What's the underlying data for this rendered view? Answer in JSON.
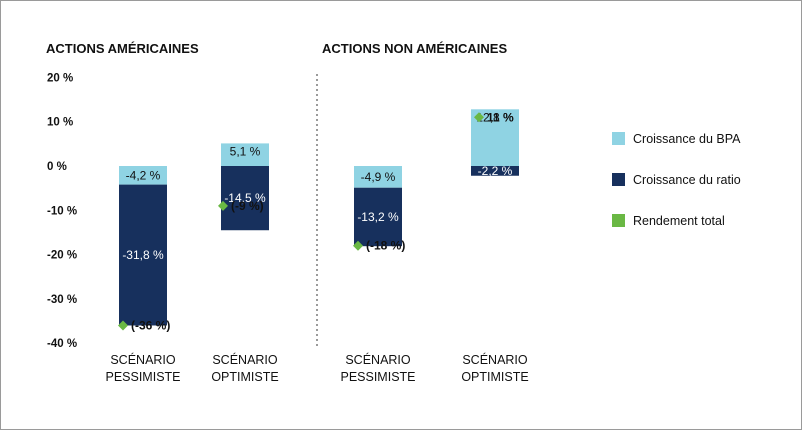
{
  "colors": {
    "eps_growth": "#8fd3e3",
    "ratio_growth": "#17305d",
    "total_return": "#6ab844",
    "divider": "#9a9a9a"
  },
  "chart_data": {
    "type": "bar",
    "stacked": true,
    "ylim": [
      -40,
      20
    ],
    "yticks": [
      "20 %",
      "10 %",
      "0 %",
      "-10 %",
      "-20 %",
      "-30 %",
      "-40 %"
    ],
    "ytick_values": [
      20,
      10,
      0,
      -10,
      -20,
      -30,
      -40
    ],
    "legend": {
      "placement": "right",
      "items": [
        {
          "key": "eps_growth",
          "label": "Croissance du BPA",
          "marker": "square"
        },
        {
          "key": "ratio_growth",
          "label": "Croissance du ratio",
          "marker": "square"
        },
        {
          "key": "total_return",
          "label": "Rendement total",
          "marker": "square"
        }
      ]
    },
    "panels": [
      {
        "title": "ACTIONS AMÉRICAINES",
        "scenarios": [
          {
            "category": [
              "SCÉNARIO",
              "PESSIMISTE"
            ],
            "eps_growth": -4.2,
            "eps_label": "-4,2 %",
            "ratio_growth": -31.8,
            "ratio_label": "-31,8 %",
            "total_return": -36,
            "total_label": "(-36 %)"
          },
          {
            "category": [
              "SCÉNARIO",
              "OPTIMISTE"
            ],
            "eps_growth": 5.1,
            "eps_label": "5,1 %",
            "ratio_growth": -14.5,
            "ratio_label": "-14,5 %",
            "total_return": -9,
            "total_label": "(-9 %)"
          }
        ]
      },
      {
        "title": "ACTIONS NON AMÉRICAINES",
        "scenarios": [
          {
            "category": [
              "SCÉNARIO",
              "PESSIMISTE"
            ],
            "eps_growth": -4.9,
            "eps_label": "-4,9 %",
            "ratio_growth": -13.2,
            "ratio_label": "-13,2 %",
            "total_return": -18,
            "total_label": "(-18 %)"
          },
          {
            "category": [
              "SCÉNARIO",
              "OPTIMISTE"
            ],
            "eps_growth": 12.8,
            "eps_label": "12,8 %",
            "ratio_growth": -2.2,
            "ratio_label": "-2,2 %",
            "total_return": 11,
            "total_label": "11 %"
          }
        ]
      }
    ]
  }
}
